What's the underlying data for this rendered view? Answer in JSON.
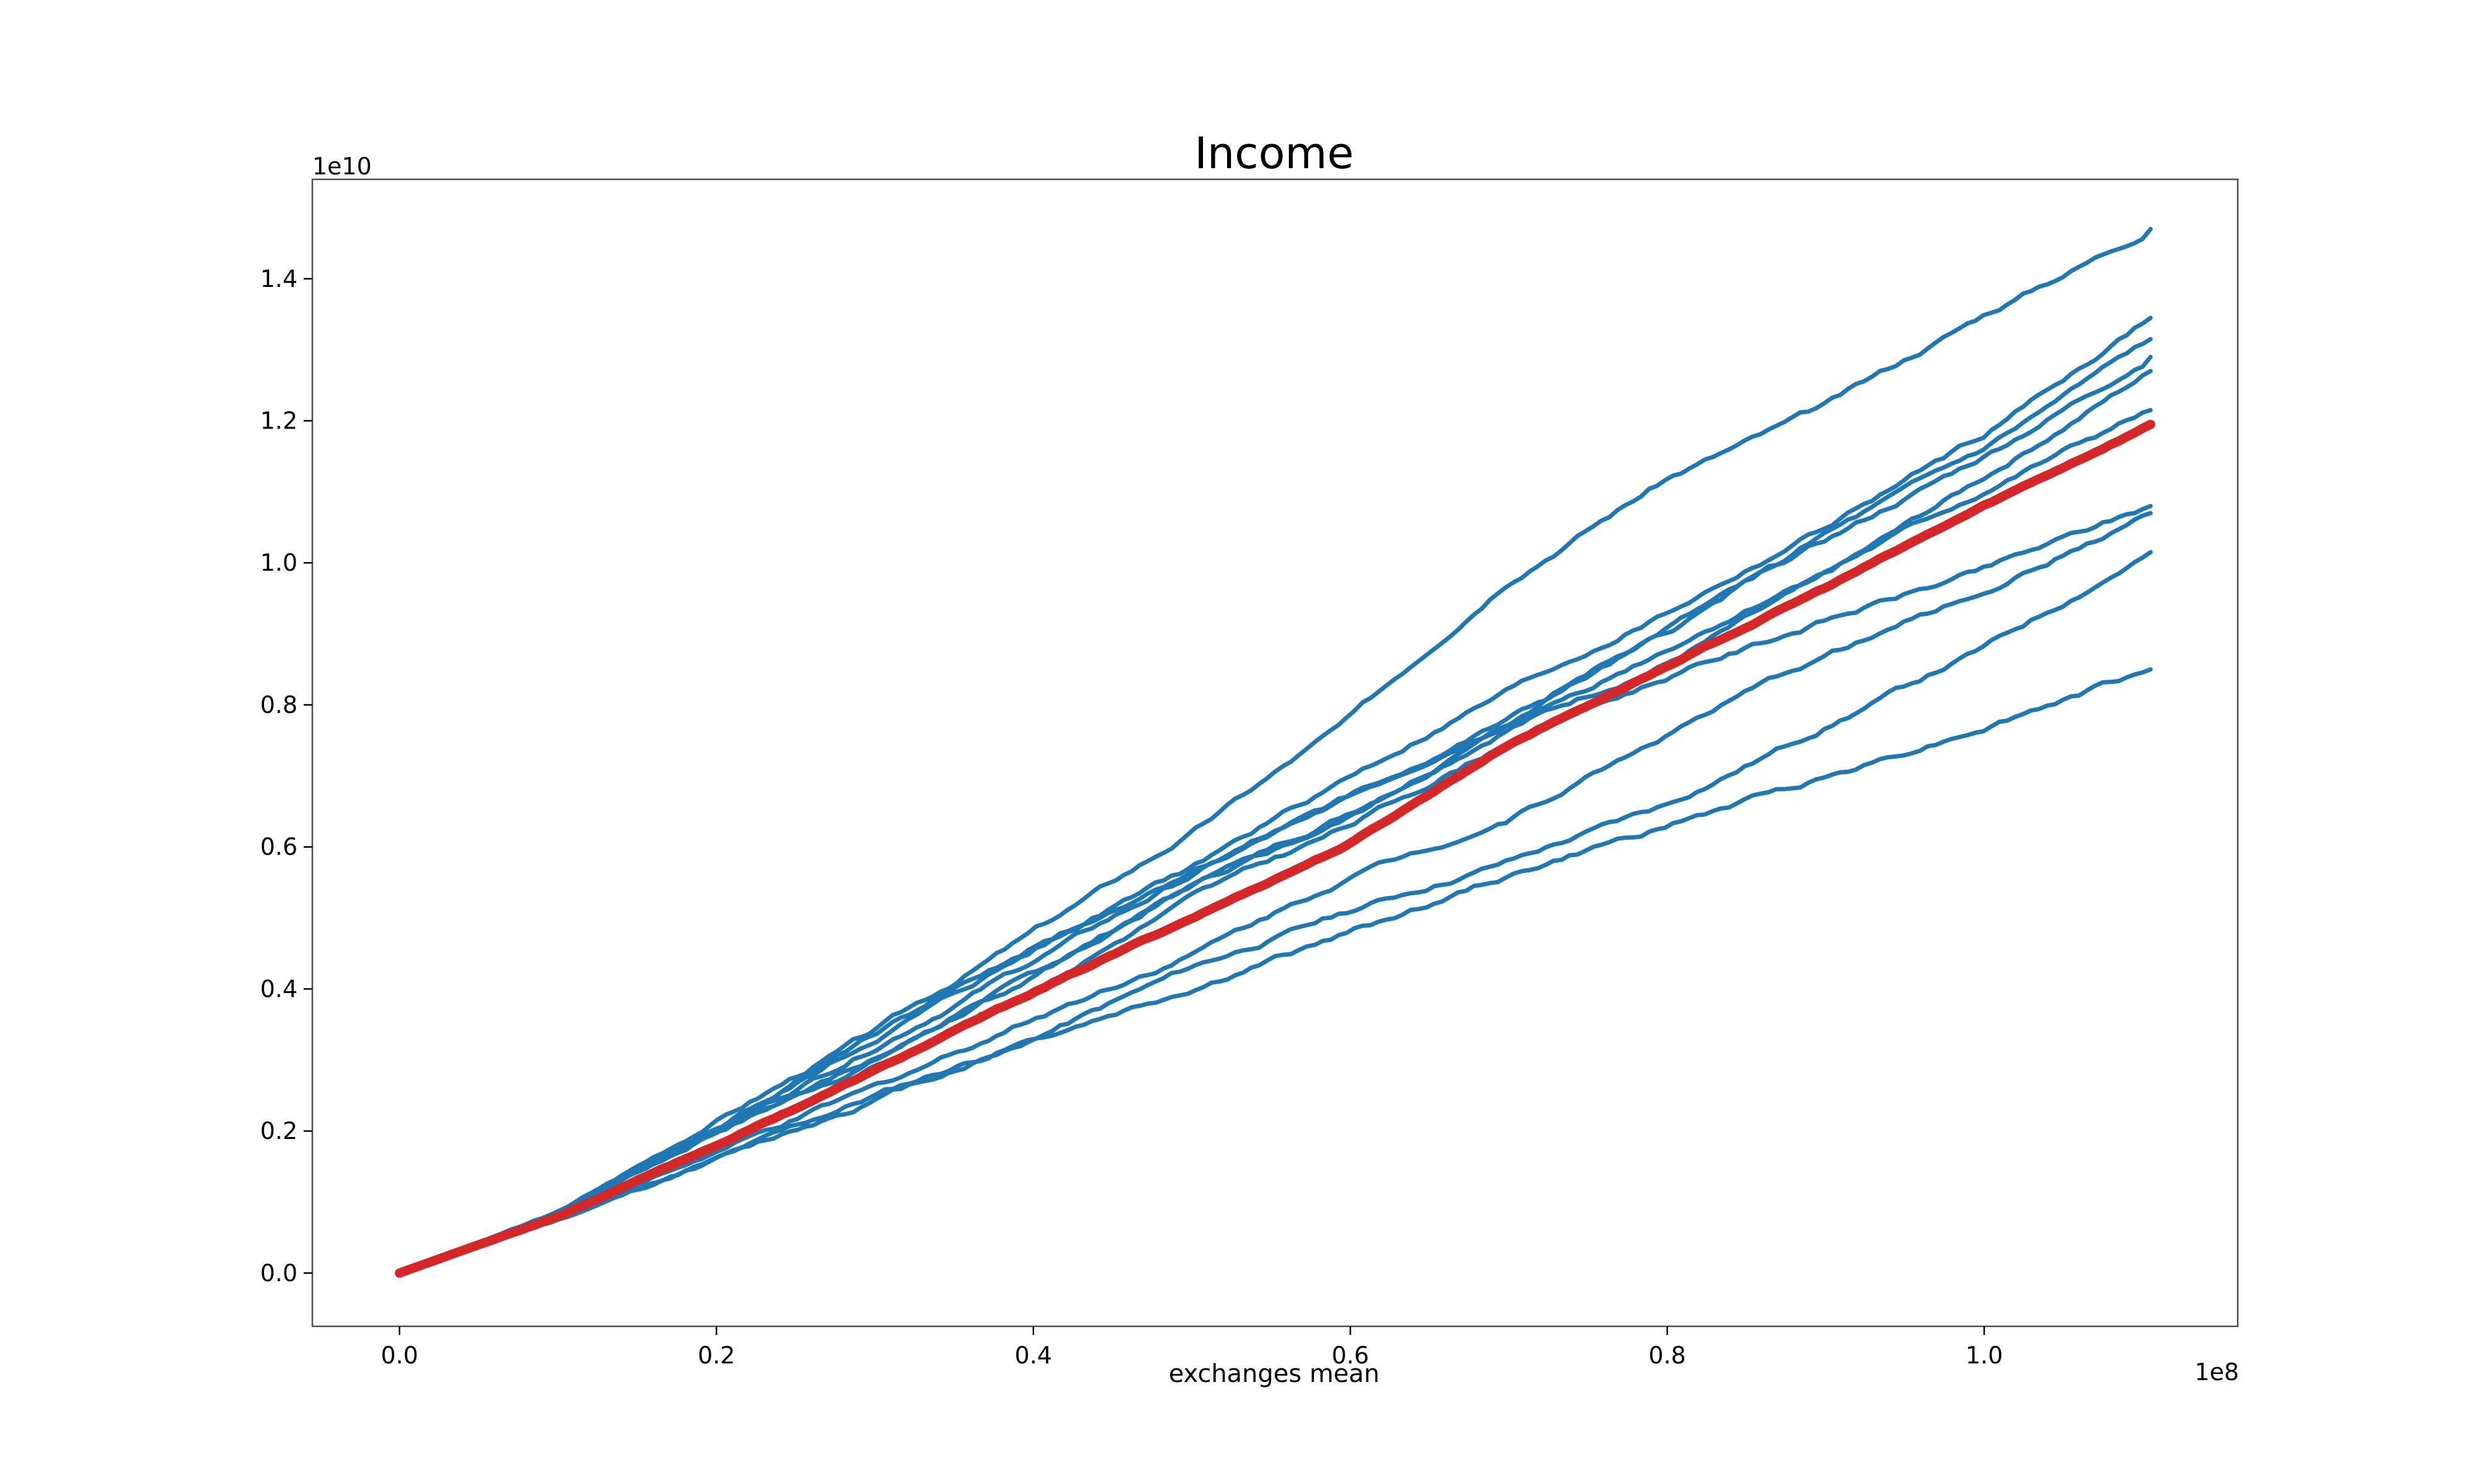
{
  "chart_data": {
    "type": "line",
    "title": "Income",
    "xlabel": "exchanges mean",
    "ylabel": "",
    "x_offset_label": "1e8",
    "y_offset_label": "1e10",
    "x_multiplier": 100000000,
    "y_multiplier": 10000000000,
    "xlim": [
      -0.055,
      1.16
    ],
    "ylim": [
      -0.075,
      1.54
    ],
    "x_ticks": [
      0.0,
      0.2,
      0.4,
      0.6,
      0.8,
      1.0
    ],
    "x_tick_labels": [
      "0.0",
      "0.2",
      "0.4",
      "0.6",
      "0.8",
      "1.0"
    ],
    "y_ticks": [
      0.0,
      0.2,
      0.4,
      0.6,
      0.8,
      1.0,
      1.2,
      1.4
    ],
    "y_tick_labels": [
      "0.0",
      "0.2",
      "0.4",
      "0.6",
      "0.8",
      "1.0",
      "1.2",
      "1.4"
    ],
    "grid": false,
    "legend": "none",
    "colors": {
      "runs": "#1f77b4",
      "mean": "#d62728"
    },
    "x": [
      0.0,
      0.1,
      0.2,
      0.3,
      0.4,
      0.5,
      0.6,
      0.7,
      0.8,
      0.9,
      1.0,
      1.105
    ],
    "series": [
      {
        "kind": "run",
        "values": [
          0.0,
          0.085,
          0.215,
          0.34,
          0.48,
          0.62,
          0.78,
          0.98,
          1.12,
          1.22,
          1.35,
          1.47
        ]
      },
      {
        "kind": "run",
        "values": [
          0.0,
          0.085,
          0.205,
          0.34,
          0.46,
          0.57,
          0.7,
          0.82,
          0.93,
          1.05,
          1.18,
          1.345
        ]
      },
      {
        "kind": "run",
        "values": [
          0.0,
          0.085,
          0.2,
          0.33,
          0.455,
          0.57,
          0.67,
          0.78,
          0.9,
          1.04,
          1.16,
          1.315
        ]
      },
      {
        "kind": "run",
        "values": [
          0.0,
          0.085,
          0.2,
          0.32,
          0.44,
          0.56,
          0.67,
          0.78,
          0.91,
          1.03,
          1.15,
          1.29
        ]
      },
      {
        "kind": "run",
        "values": [
          0.0,
          0.085,
          0.2,
          0.3,
          0.42,
          0.545,
          0.65,
          0.77,
          0.86,
          0.98,
          1.12,
          1.27
        ]
      },
      {
        "kind": "run",
        "values": [
          0.0,
          0.085,
          0.2,
          0.3,
          0.42,
          0.54,
          0.64,
          0.77,
          0.88,
          0.99,
          1.1,
          1.215
        ]
      },
      {
        "kind": "run",
        "values": [
          0.0,
          0.08,
          0.18,
          0.29,
          0.4,
          0.53,
          0.63,
          0.75,
          0.84,
          0.92,
          0.99,
          1.08
        ]
      },
      {
        "kind": "run",
        "values": [
          0.0,
          0.08,
          0.17,
          0.26,
          0.36,
          0.45,
          0.56,
          0.64,
          0.76,
          0.87,
          0.96,
          1.07
        ]
      },
      {
        "kind": "run",
        "values": [
          0.0,
          0.075,
          0.16,
          0.25,
          0.33,
          0.43,
          0.51,
          0.58,
          0.66,
          0.77,
          0.88,
          1.015
        ]
      },
      {
        "kind": "run",
        "values": [
          0.0,
          0.075,
          0.16,
          0.245,
          0.33,
          0.4,
          0.48,
          0.56,
          0.63,
          0.7,
          0.77,
          0.85
        ]
      },
      {
        "kind": "mean",
        "values": [
          0.0,
          0.08,
          0.18,
          0.285,
          0.395,
          0.5,
          0.605,
          0.745,
          0.855,
          0.965,
          1.08,
          1.195
        ]
      }
    ]
  }
}
